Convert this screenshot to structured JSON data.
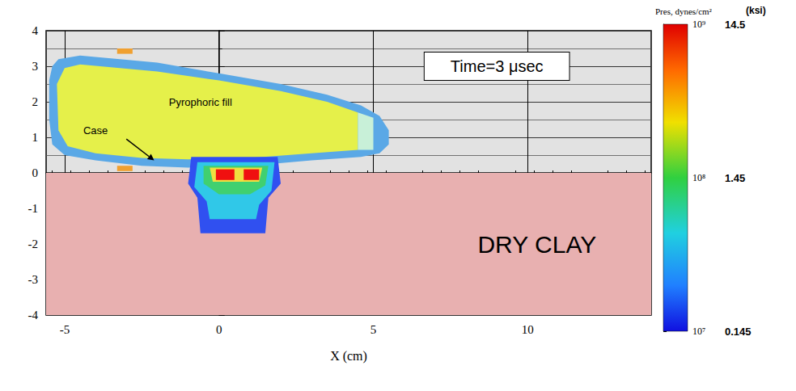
{
  "chart_data": {
    "type": "field",
    "xlabel": "X (cm)",
    "xlim": [
      -5.6,
      14
    ],
    "xticks": [
      -5,
      0,
      5,
      10
    ],
    "ylim": [
      -4,
      4
    ],
    "yticks": [
      -4,
      -3,
      -2,
      -1,
      0,
      1,
      2,
      3,
      4
    ],
    "grid": true,
    "regions": [
      {
        "color": "#e8b0b0",
        "points": [
          [
            -5.6,
            -4
          ],
          [
            14,
            -4
          ],
          [
            14,
            0
          ],
          [
            -5.6,
            0
          ]
        ]
      },
      {
        "color": "#5aa8e6",
        "points": [
          [
            -5.2,
            3.2
          ],
          [
            -4.5,
            3.3
          ],
          [
            -2,
            3.1
          ],
          [
            0,
            2.8
          ],
          [
            2,
            2.5
          ],
          [
            3.5,
            2.2
          ],
          [
            4.6,
            1.9
          ],
          [
            5.2,
            1.6
          ],
          [
            5.5,
            1.2
          ],
          [
            5.5,
            0.8
          ],
          [
            5.2,
            0.55
          ],
          [
            4.6,
            0.45
          ],
          [
            3,
            0.35
          ],
          [
            1,
            0.2
          ],
          [
            -1,
            0.15
          ],
          [
            -2.5,
            0.2
          ],
          [
            -4,
            0.35
          ],
          [
            -5,
            0.5
          ],
          [
            -5.4,
            0.8
          ],
          [
            -5.5,
            1.5
          ],
          [
            -5.5,
            2.6
          ],
          [
            -5.4,
            3.0
          ]
        ]
      },
      {
        "color": "#e5f04a",
        "points": [
          [
            -5.0,
            2.95
          ],
          [
            -4.5,
            3.05
          ],
          [
            -2,
            2.85
          ],
          [
            0,
            2.6
          ],
          [
            2,
            2.3
          ],
          [
            3.5,
            2.0
          ],
          [
            4.5,
            1.7
          ],
          [
            4.5,
            0.65
          ],
          [
            3,
            0.55
          ],
          [
            1,
            0.42
          ],
          [
            -1,
            0.38
          ],
          [
            -2.5,
            0.42
          ],
          [
            -4,
            0.55
          ],
          [
            -4.9,
            0.75
          ],
          [
            -5.2,
            1.2
          ],
          [
            -5.25,
            2.5
          ]
        ]
      },
      {
        "color": "#c8f0d8",
        "points": [
          [
            4.5,
            1.7
          ],
          [
            5.0,
            1.55
          ],
          [
            5.0,
            0.65
          ],
          [
            4.5,
            0.65
          ]
        ]
      },
      {
        "color": "#f0a030",
        "points": [
          [
            -3.3,
            3.5
          ],
          [
            -2.8,
            3.5
          ],
          [
            -2.8,
            3.35
          ],
          [
            -3.3,
            3.35
          ]
        ]
      },
      {
        "color": "#f0a030",
        "points": [
          [
            -3.3,
            0.2
          ],
          [
            -2.8,
            0.2
          ],
          [
            -2.8,
            0.05
          ],
          [
            -3.3,
            0.05
          ]
        ]
      },
      {
        "color": "#3050f0",
        "points": [
          [
            -0.9,
            0.45
          ],
          [
            1.9,
            0.45
          ],
          [
            2.0,
            -0.3
          ],
          [
            1.6,
            -0.7
          ],
          [
            1.5,
            -1.7
          ],
          [
            -0.6,
            -1.7
          ],
          [
            -0.7,
            -0.7
          ],
          [
            -1.0,
            -0.3
          ]
        ]
      },
      {
        "color": "#30c8e8",
        "points": [
          [
            -0.7,
            0.3
          ],
          [
            1.8,
            0.3
          ],
          [
            1.7,
            -0.5
          ],
          [
            1.3,
            -0.9
          ],
          [
            1.2,
            -1.3
          ],
          [
            -0.3,
            -1.3
          ],
          [
            -0.4,
            -0.8
          ],
          [
            -0.8,
            -0.4
          ]
        ]
      },
      {
        "color": "#40d070",
        "points": [
          [
            -0.5,
            0.2
          ],
          [
            1.6,
            0.2
          ],
          [
            1.5,
            -0.35
          ],
          [
            1.0,
            -0.6
          ],
          [
            0.0,
            -0.6
          ],
          [
            -0.5,
            -0.3
          ]
        ]
      },
      {
        "color": "#f0e040",
        "points": [
          [
            -0.3,
            0.15
          ],
          [
            1.4,
            0.15
          ],
          [
            1.3,
            -0.25
          ],
          [
            -0.2,
            -0.25
          ]
        ]
      },
      {
        "color": "#f01010",
        "points": [
          [
            -0.1,
            0.1
          ],
          [
            0.5,
            0.1
          ],
          [
            0.5,
            -0.2
          ],
          [
            -0.1,
            -0.2
          ]
        ]
      },
      {
        "color": "#f01010",
        "points": [
          [
            0.8,
            0.1
          ],
          [
            1.3,
            0.1
          ],
          [
            1.3,
            -0.2
          ],
          [
            0.8,
            -0.2
          ]
        ]
      }
    ],
    "time_label": {
      "text": "Time=3 μsec",
      "x": 9.0,
      "y": 3.0
    },
    "material_label": {
      "text": "DRY CLAY",
      "x": 10.3,
      "y": -2.0
    },
    "part_labels": [
      {
        "text": "Case",
        "x": -4.0,
        "y": 1.2,
        "arrow": [
          [
            -3.0,
            0.95
          ],
          [
            -2.1,
            0.35
          ]
        ]
      },
      {
        "text": "Pyrophoric fill",
        "x": -0.6,
        "y": 2.0
      }
    ],
    "colorbar": {
      "title": "Pres, dynes/cm²",
      "unit_title": "(ksi)",
      "log": true,
      "range": [
        10000000,
        1000000000
      ],
      "ticks": [
        {
          "value": 10000000,
          "label": "10⁷",
          "ksi": 0.145
        },
        {
          "value": 100000000,
          "label": "10⁸",
          "ksi": 1.45
        },
        {
          "value": 1000000000,
          "label": "10⁹",
          "ksi": 14.5
        }
      ]
    }
  }
}
